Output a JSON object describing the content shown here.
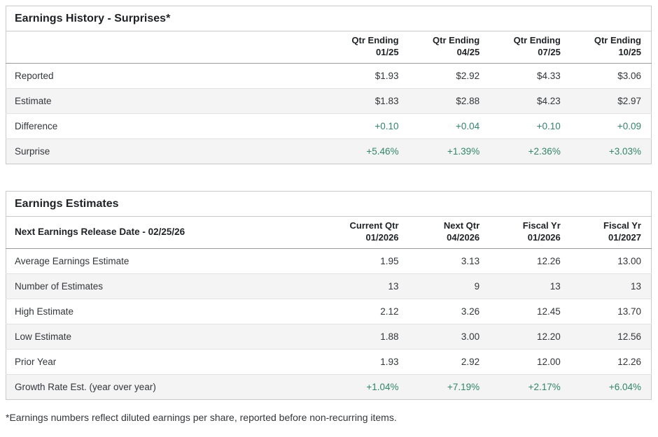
{
  "colors": {
    "positive_green": "#2d8769",
    "row_alt_background": "#f4f4f4",
    "border": "#c9c9c9"
  },
  "earnings_history": {
    "title": "Earnings History - Surprises*",
    "columns": [
      "Qtr Ending\n01/25",
      "Qtr Ending\n04/25",
      "Qtr Ending\n07/25",
      "Qtr Ending\n10/25"
    ],
    "rows": [
      {
        "label": "Reported",
        "values": [
          "$1.93",
          "$2.92",
          "$4.33",
          "$3.06"
        ]
      },
      {
        "label": "Estimate",
        "values": [
          "$1.83",
          "$2.88",
          "$4.23",
          "$2.97"
        ]
      },
      {
        "label": "Difference",
        "values": [
          "+0.10",
          "+0.04",
          "+0.10",
          "+0.09"
        ]
      },
      {
        "label": "Surprise",
        "values": [
          "+5.46%",
          "+1.39%",
          "+2.36%",
          "+3.03%"
        ]
      }
    ]
  },
  "earnings_estimates": {
    "title": "Earnings Estimates",
    "release_label": "Next Earnings Release Date - 02/25/26",
    "columns": [
      "Current Qtr\n01/2026",
      "Next Qtr\n04/2026",
      "Fiscal Yr\n01/2026",
      "Fiscal Yr\n01/2027"
    ],
    "rows": [
      {
        "label": "Average Earnings Estimate",
        "values": [
          "1.95",
          "3.13",
          "12.26",
          "13.00"
        ]
      },
      {
        "label": "Number of Estimates",
        "values": [
          "13",
          "9",
          "13",
          "13"
        ]
      },
      {
        "label": "High Estimate",
        "values": [
          "2.12",
          "3.26",
          "12.45",
          "13.70"
        ]
      },
      {
        "label": "Low Estimate",
        "values": [
          "1.88",
          "3.00",
          "12.20",
          "12.56"
        ]
      },
      {
        "label": "Prior Year",
        "values": [
          "1.93",
          "2.92",
          "12.00",
          "12.26"
        ]
      },
      {
        "label": "Growth Rate Est. (year over year)",
        "values": [
          "+1.04%",
          "+7.19%",
          "+2.17%",
          "+6.04%"
        ]
      }
    ]
  },
  "footnote": "*Earnings numbers reflect diluted earnings per share, reported before non-recurring items."
}
